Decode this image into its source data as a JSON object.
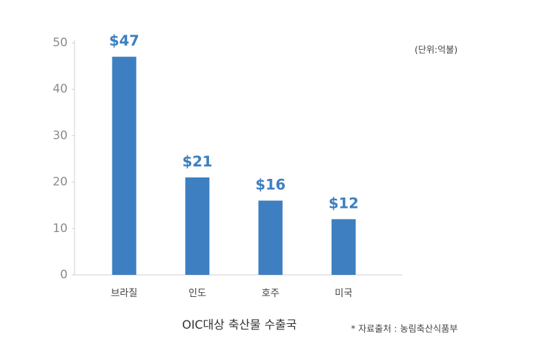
{
  "chart_data": {
    "type": "bar",
    "title": "OIC대상 축산물 수출국",
    "unit_note": "(단위:억불)",
    "source": "* 자료출처 : 농림축산식품부",
    "categories": [
      "브라질",
      "인도",
      "호주",
      "미국"
    ],
    "values": [
      47,
      21,
      16,
      12
    ],
    "value_labels": [
      "$47",
      "$21",
      "$16",
      "$12"
    ],
    "color": "#3d7fc1",
    "ylim": [
      0,
      50
    ],
    "yticks": [
      0,
      10,
      20,
      30,
      40,
      50
    ],
    "grid": false
  }
}
